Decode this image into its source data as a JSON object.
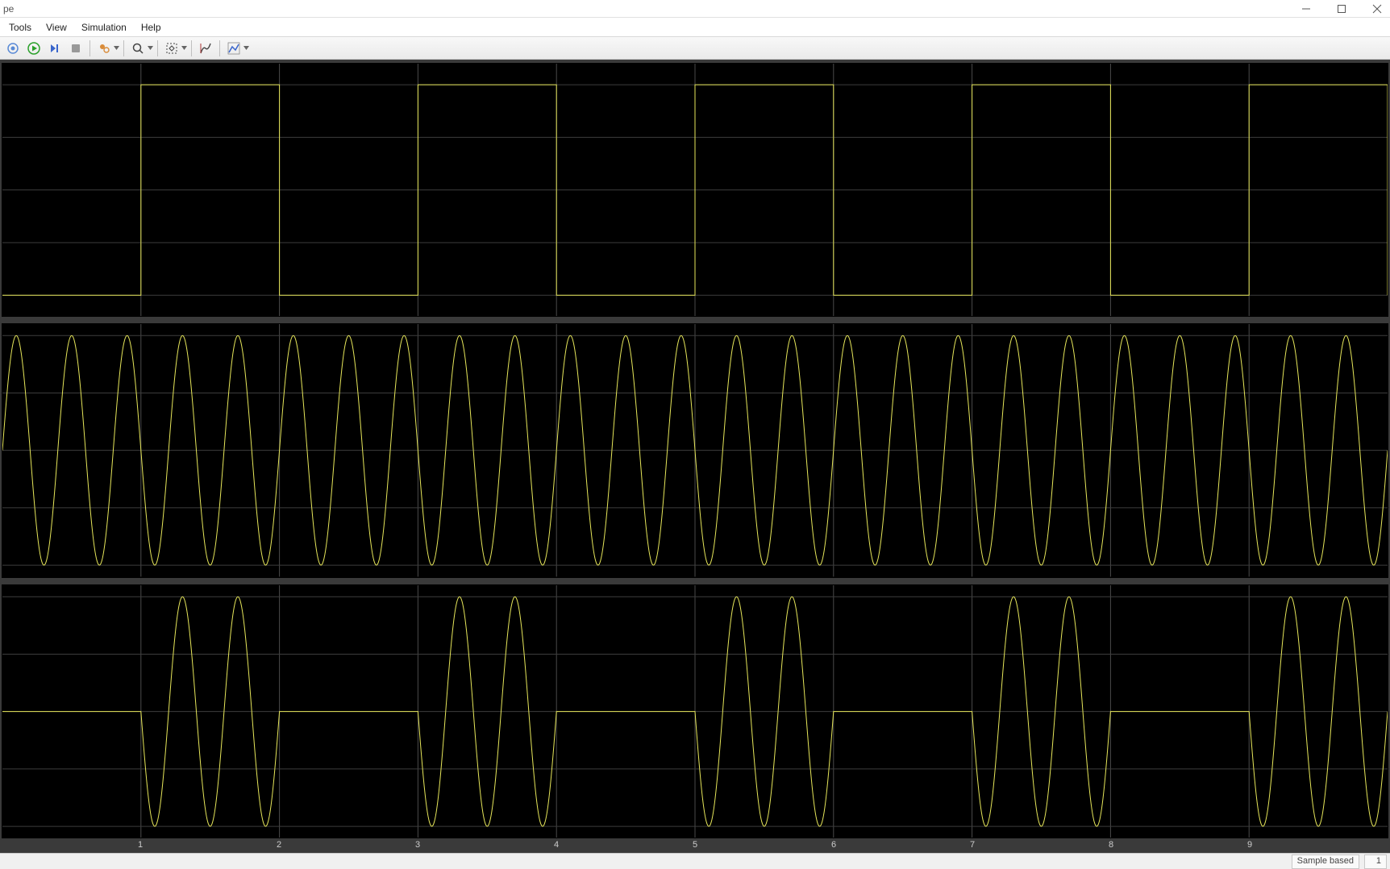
{
  "window": {
    "title": "pe",
    "controls": {
      "minimize": "minimize-icon",
      "maximize": "maximize-icon",
      "close": "close-icon"
    }
  },
  "menu": {
    "items": [
      "Tools",
      "View",
      "Simulation",
      "Help"
    ]
  },
  "toolbar": {
    "icons": [
      "printer-icon",
      "run-icon",
      "step-forward-icon",
      "stop-icon",
      "highlight-icon",
      "zoom-icon",
      "fit-icon",
      "cursor-icon",
      "measurements-icon"
    ],
    "icon_colors": {
      "printer": "#5a8ad6",
      "run": "#2aa02a",
      "step": "#3a66cc",
      "stop": "#888888",
      "highlight": "#d98c3a",
      "zoom": "#444444",
      "fit": "#444444",
      "cursor": "#444444",
      "measurements": "#3a66cc"
    }
  },
  "scope": {
    "background_color": "#000000",
    "container_color": "#3a3a3a",
    "grid_color": "#3d3d3d",
    "grid_major_color": "#4a4a4a",
    "trace_color": "#e6e65a",
    "trace_width": 1.0,
    "x_range": [
      0,
      10
    ],
    "x_ticks": [
      1,
      2,
      3,
      4,
      5,
      6,
      7,
      8,
      9
    ],
    "x_tick_color": "#cccccc",
    "x_tick_fontsize": 11,
    "plots": [
      {
        "type": "square",
        "y_range": [
          -1.2,
          1.2
        ],
        "y_gridlines": [
          -1.0,
          -0.5,
          0.0,
          0.5,
          1.0
        ],
        "frequency_hz": 0.5,
        "amplitude": 1.0,
        "duty_cycle": 0.5,
        "phase": 0.5,
        "low": -1.0,
        "high": 1.0
      },
      {
        "type": "sine",
        "y_range": [
          -1.1,
          1.1
        ],
        "y_gridlines": [
          -1.0,
          -0.5,
          0.0,
          0.5,
          1.0
        ],
        "frequency_hz": 2.5,
        "amplitude": 1.0,
        "phase": 0.0
      },
      {
        "type": "sine_gated",
        "y_range": [
          -1.1,
          1.1
        ],
        "y_gridlines": [
          -1.0,
          -0.5,
          0.0,
          0.5,
          1.0
        ],
        "frequency_hz": 2.5,
        "amplitude": 1.0,
        "gate_from_plot": 0
      }
    ]
  },
  "status": {
    "mode_label": "Sample based",
    "time_label": "1"
  }
}
